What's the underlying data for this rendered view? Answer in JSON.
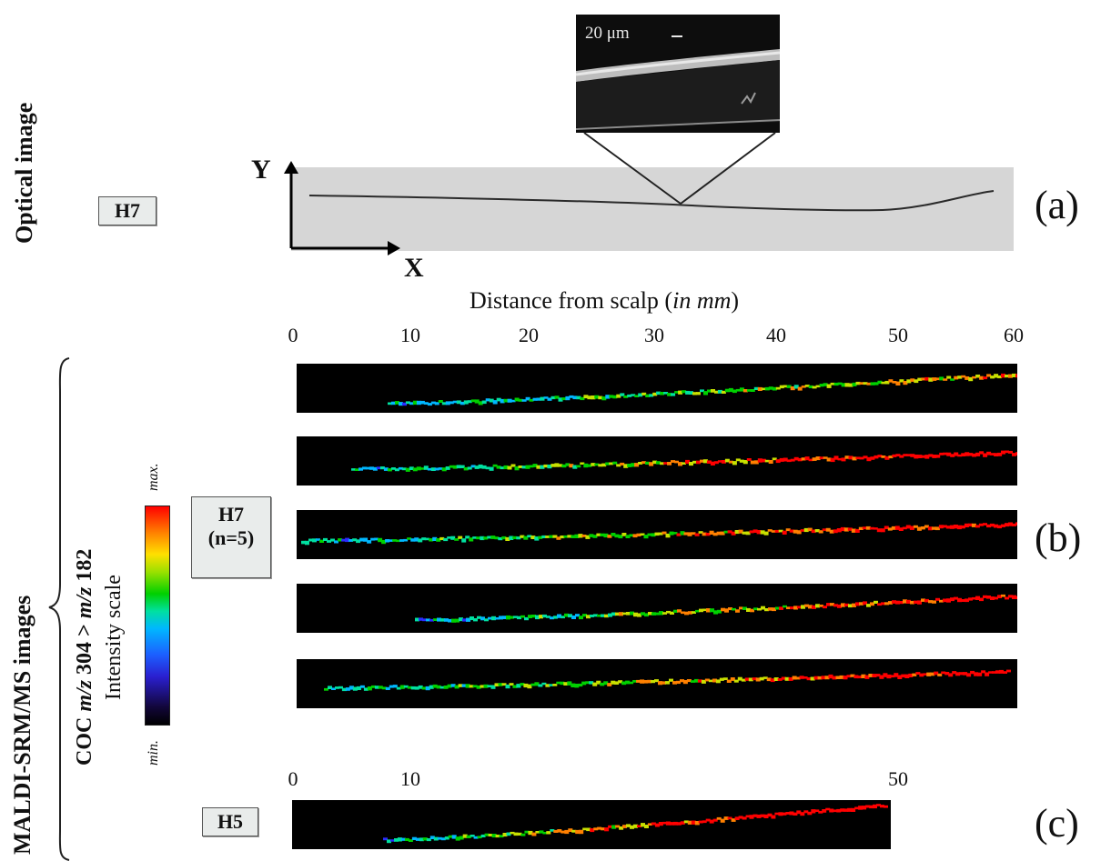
{
  "section_a": {
    "side_title": "Optical image",
    "sample": "H7",
    "axis_y": "Y",
    "axis_x": "X",
    "inset_scale": "20 μm",
    "panel": "(a)"
  },
  "distance": {
    "title_main": "Distance from scalp (",
    "title_unit": "in mm",
    "title_close": ")",
    "ticks": [
      "0",
      "10",
      "20",
      "30",
      "40",
      "50",
      "60"
    ]
  },
  "section_b": {
    "side_title": "MALDI-SRM/MS images",
    "coc_prefix": "COC ",
    "mz1": "m/z",
    "val1": " 304 > ",
    "mz2": "m/z",
    "val2": " 182",
    "scale_label": "Intensity scale",
    "scale_max": "max.",
    "scale_min": "min.",
    "sample_line1": "H7",
    "sample_line2": "(n=5)",
    "panel": "(b)"
  },
  "section_c": {
    "ticks": [
      "0",
      "10",
      "50"
    ],
    "sample": "H5",
    "panel": "(c)"
  },
  "colors": {
    "hair_bg": "#d9d9d9",
    "strip_bg": "#000000",
    "colormap": [
      "#000000",
      "#1a0a5a",
      "#2b2bff",
      "#00b7ff",
      "#00e0a0",
      "#00d000",
      "#c8e000",
      "#ff8000",
      "#ff0000"
    ]
  }
}
